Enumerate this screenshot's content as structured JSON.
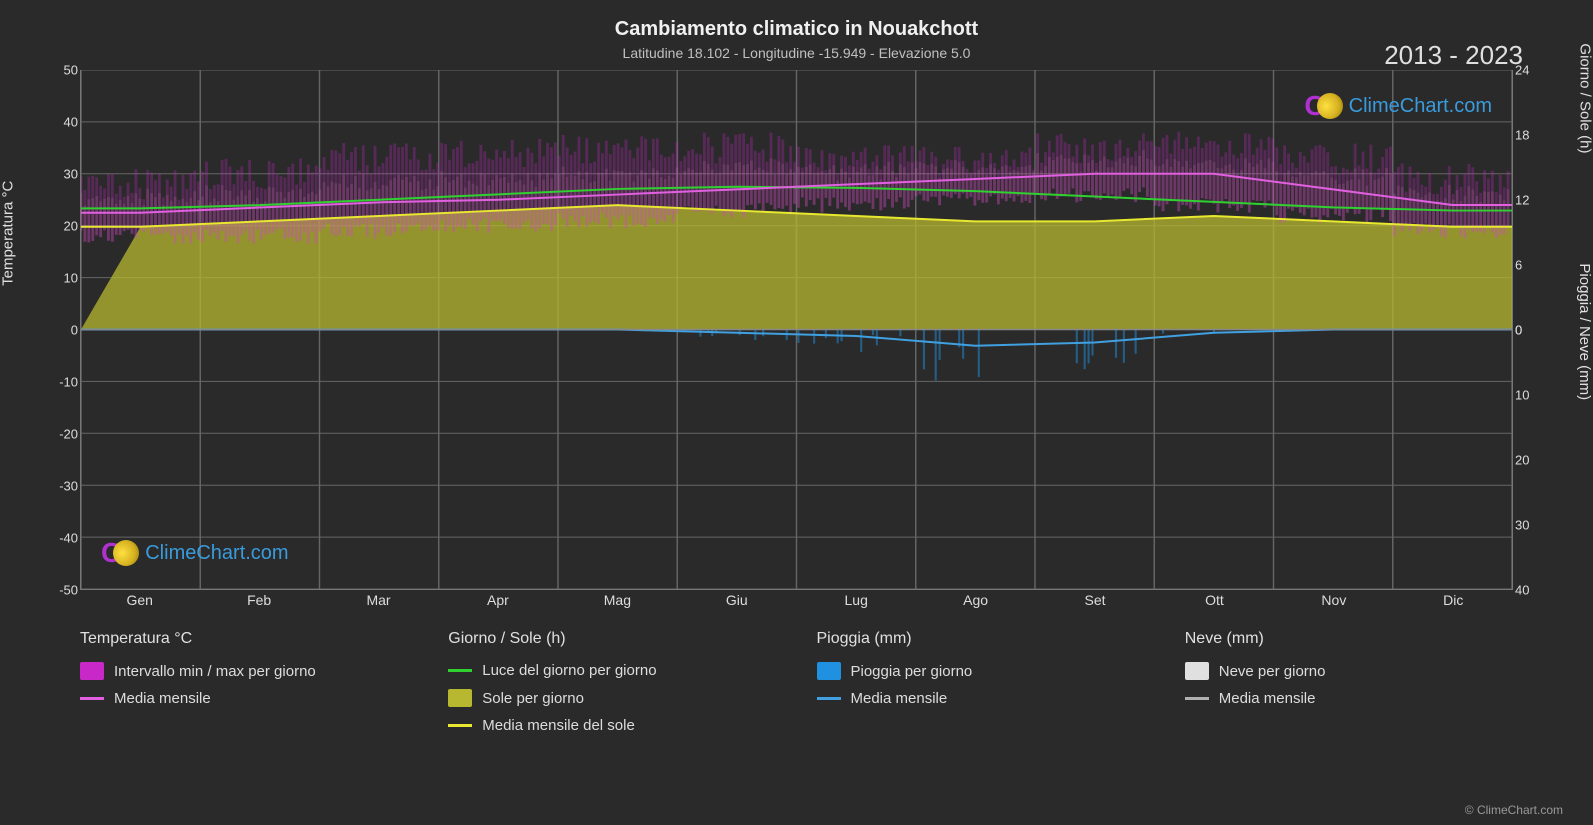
{
  "title": "Cambiamento climatico in Nouakchott",
  "subtitle": "Latitudine 18.102 - Longitudine -15.949 - Elevazione 5.0",
  "year_range": "2013 - 2023",
  "axis_labels": {
    "left": "Temperatura °C",
    "right_top": "Giorno / Sole (h)",
    "right_bottom": "Pioggia / Neve (mm)"
  },
  "y_left": {
    "min": -50,
    "max": 50,
    "ticks": [
      50,
      40,
      30,
      20,
      10,
      0,
      -10,
      -20,
      -30,
      -40,
      -50
    ]
  },
  "y_right_top": {
    "min": 0,
    "max": 24,
    "ticks": [
      24,
      18,
      12,
      6,
      0
    ]
  },
  "y_right_bottom": {
    "min": 0,
    "max": 40,
    "ticks": [
      0,
      10,
      20,
      30,
      40
    ]
  },
  "x_axis": {
    "labels": [
      "Gen",
      "Feb",
      "Mar",
      "Apr",
      "Mag",
      "Giu",
      "Lug",
      "Ago",
      "Set",
      "Ott",
      "Nov",
      "Dic"
    ]
  },
  "colors": {
    "background": "#2a2a2a",
    "grid": "#666666",
    "text": "#e0e0e0",
    "temp_range_fill": "#c828c8",
    "temp_range_fill_mid": "#d878b8",
    "temp_avg_line": "#e060e0",
    "daylight_line": "#30d030",
    "sun_fill": "#b8b830",
    "sun_line": "#e8e830",
    "rain_fill": "#2090e0",
    "rain_line": "#40a0e0",
    "snow_fill": "#e0e0e0",
    "snow_line": "#b0b0b0"
  },
  "series": {
    "temp_min": [
      18,
      18,
      19,
      20,
      21,
      23,
      24,
      25,
      26,
      24,
      22,
      19
    ],
    "temp_max": [
      28,
      30,
      33,
      34,
      35,
      35,
      33,
      33,
      35,
      36,
      33,
      29
    ],
    "temp_avg": [
      22.5,
      23.5,
      24.5,
      25,
      26,
      27,
      28,
      29,
      30,
      30,
      27,
      24
    ],
    "daylight_h": [
      11.2,
      11.5,
      12,
      12.5,
      13,
      13.2,
      13.1,
      12.8,
      12.3,
      11.8,
      11.3,
      11.0
    ],
    "sun_h": [
      9.5,
      10,
      10.5,
      11,
      11.5,
      11,
      10.5,
      10,
      10,
      10.5,
      10,
      9.5
    ],
    "rain_mm": [
      0,
      0,
      0,
      0,
      0,
      0.5,
      1,
      2.5,
      2,
      0.5,
      0,
      0
    ]
  },
  "legend": {
    "temp": {
      "heading": "Temperatura °C",
      "range": "Intervallo min / max per giorno",
      "avg": "Media mensile"
    },
    "daysun": {
      "heading": "Giorno / Sole (h)",
      "daylight": "Luce del giorno per giorno",
      "sun": "Sole per giorno",
      "sun_avg": "Media mensile del sole"
    },
    "rain": {
      "heading": "Pioggia (mm)",
      "daily": "Pioggia per giorno",
      "avg": "Media mensile"
    },
    "snow": {
      "heading": "Neve (mm)",
      "daily": "Neve per giorno",
      "avg": "Media mensile"
    }
  },
  "watermark": "ClimeChart.com",
  "copyright": "© ClimeChart.com"
}
